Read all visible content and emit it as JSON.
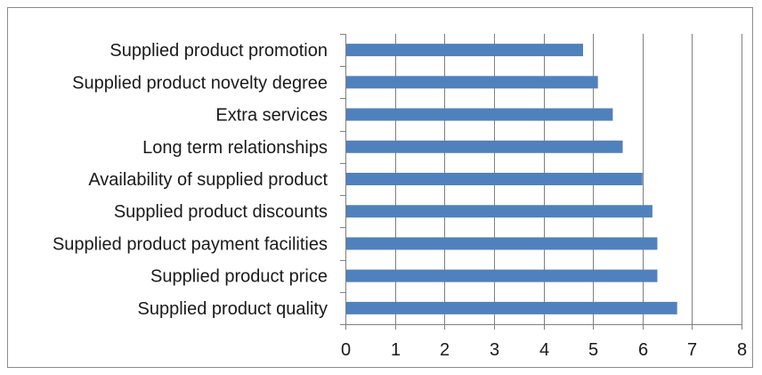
{
  "chart_data": {
    "type": "bar",
    "orientation": "horizontal",
    "categories": [
      "Supplied product promotion",
      "Supplied product novelty degree",
      "Extra services",
      "Long term relationships",
      "Availability of supplied product",
      "Supplied product discounts",
      "Supplied product payment facilities",
      "Supplied product price",
      "Supplied product quality"
    ],
    "values": [
      4.8,
      5.1,
      5.4,
      5.6,
      6.0,
      6.2,
      6.3,
      6.3,
      6.7
    ],
    "xlim": [
      0,
      8
    ],
    "xticks": [
      "0",
      "1",
      "2",
      "3",
      "4",
      "5",
      "6",
      "7",
      "8"
    ],
    "title": "",
    "xlabel": "",
    "ylabel": "",
    "grid": "vertical",
    "legend": "none",
    "colors": {
      "bar": "#4f81bd",
      "grid": "#808080",
      "axis": "#808080"
    }
  }
}
